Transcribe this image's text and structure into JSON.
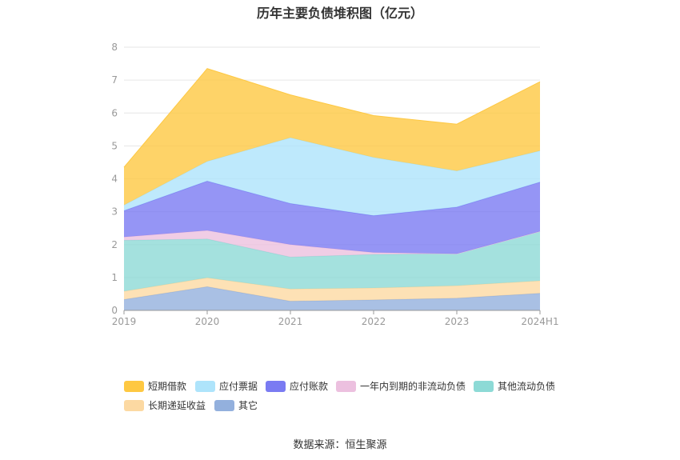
{
  "chart_data": {
    "type": "area",
    "stacked": true,
    "title": "历年主要负债堆积图（亿元）",
    "categories": [
      "2019",
      "2020",
      "2021",
      "2022",
      "2023",
      "2024H1"
    ],
    "ylim": [
      0,
      8
    ],
    "yticks": [
      "0",
      "1",
      "2",
      "3",
      "4",
      "5",
      "6",
      "7",
      "8"
    ],
    "grid": true,
    "legend_position": "bottom",
    "series": [
      {
        "name": "其它",
        "color": "#93b0dd",
        "values": [
          0.33,
          0.72,
          0.28,
          0.32,
          0.37,
          0.52
        ]
      },
      {
        "name": "长期递延收益",
        "color": "#fcd9a2",
        "values": [
          0.25,
          0.27,
          0.37,
          0.36,
          0.38,
          0.38
        ]
      },
      {
        "name": "其他流动负债",
        "color": "#8ddad6",
        "values": [
          1.55,
          1.18,
          0.97,
          1.02,
          0.97,
          1.5
        ]
      },
      {
        "name": "一年内到期的非流动负债",
        "color": "#ecc0df",
        "values": [
          0.1,
          0.26,
          0.38,
          0.06,
          0.0,
          0.0
        ]
      },
      {
        "name": "应付账款",
        "color": "#7a7bf2",
        "values": [
          0.8,
          1.5,
          1.25,
          1.12,
          1.42,
          1.5
        ]
      },
      {
        "name": "应付票据",
        "color": "#aee4fb",
        "values": [
          0.17,
          0.6,
          2.0,
          1.77,
          1.1,
          0.95
        ]
      },
      {
        "name": "短期借款",
        "color": "#fec842",
        "values": [
          1.15,
          2.82,
          1.3,
          1.27,
          1.42,
          2.1
        ]
      }
    ]
  },
  "legend": {
    "items": [
      {
        "label": "短期借款",
        "color": "#fec842"
      },
      {
        "label": "应付票据",
        "color": "#aee4fb"
      },
      {
        "label": "应付账款",
        "color": "#7a7bf2"
      },
      {
        "label": "一年内到期的非流动负债",
        "color": "#ecc0df"
      },
      {
        "label": "其他流动负债",
        "color": "#8ddad6"
      },
      {
        "label": "长期递延收益",
        "color": "#fcd9a2"
      },
      {
        "label": "其它",
        "color": "#93b0dd"
      }
    ]
  },
  "source": "数据来源：恒生聚源"
}
